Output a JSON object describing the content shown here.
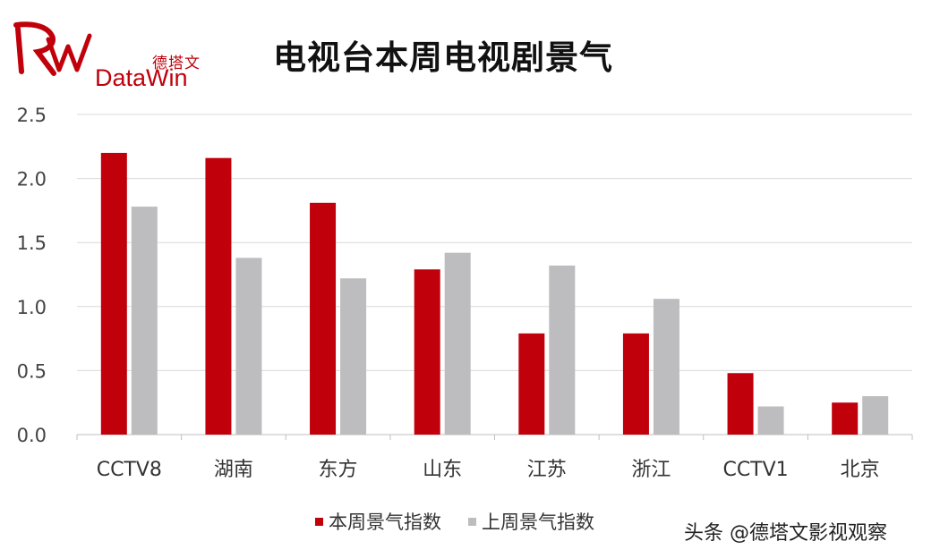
{
  "logo": {
    "name_cn": "德塔文",
    "name_en": "DataWin",
    "color": "#c0000b"
  },
  "watermark": "头条 @德塔文影视观察",
  "chart_data": {
    "type": "bar",
    "title": "电视台本周电视剧景气",
    "xlabel": "",
    "ylabel": "",
    "categories": [
      "CCTV8",
      "湖南",
      "东方",
      "山东",
      "江苏",
      "浙江",
      "CCTV1",
      "北京"
    ],
    "ylim": [
      0,
      2.5
    ],
    "yticks": [
      "0.0",
      "0.5",
      "1.0",
      "1.5",
      "2.0",
      "2.5"
    ],
    "grid": true,
    "legend_position": "bottom",
    "series": [
      {
        "name": "本周景气指数",
        "color": "#c0000b",
        "values": [
          2.2,
          2.16,
          1.81,
          1.29,
          0.79,
          0.79,
          0.48,
          0.25
        ]
      },
      {
        "name": "上周景气指数",
        "color": "#bdbcbe",
        "values": [
          1.78,
          1.38,
          1.22,
          1.42,
          1.32,
          1.06,
          0.22,
          0.3
        ]
      }
    ]
  }
}
